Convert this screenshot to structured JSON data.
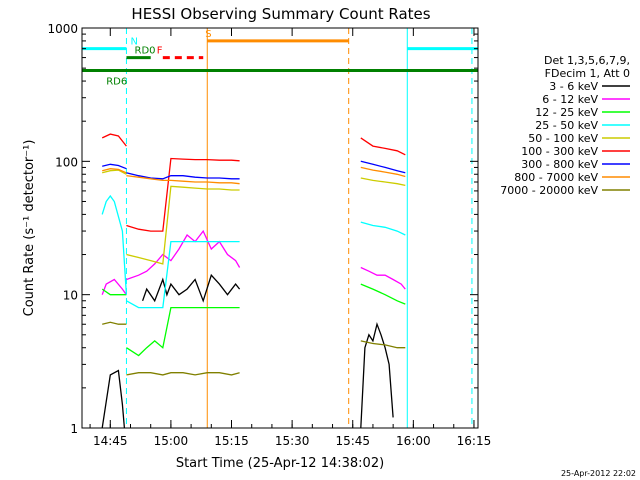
{
  "chart_data": {
    "type": "line",
    "title": "HESSI Observing Summary Count Rates",
    "xlabel": "Start Time (25-Apr-12 14:38:02)",
    "ylabel": "Count Rate (s⁻¹ detector⁻¹)",
    "yscale": "log",
    "ylim": [
      1,
      1000
    ],
    "xlim_minutes": [
      0,
      98
    ],
    "x_ticks": [
      {
        "label": "14:45",
        "min": 7
      },
      {
        "label": "15:00",
        "min": 22
      },
      {
        "label": "15:15",
        "min": 37
      },
      {
        "label": "15:30",
        "min": 52
      },
      {
        "label": "15:45",
        "min": 67
      },
      {
        "label": "16:00",
        "min": 82
      },
      {
        "label": "16:15",
        "min": 97
      }
    ],
    "y_tick_labels": [
      "1",
      "10",
      "100",
      "1000"
    ],
    "legend_header": [
      "Det 1,3,5,6,7,9,",
      "FDecim 1, Att 0"
    ],
    "legend_placement": "right",
    "series": [
      {
        "name": "3 - 6 keV",
        "color": "#000000",
        "segments": [
          [
            [
              5,
              1
            ],
            [
              7,
              2.5
            ],
            [
              9,
              2.7
            ],
            [
              10,
              1.5
            ],
            [
              10.5,
              1
            ]
          ],
          [
            [
              15,
              9
            ],
            [
              16,
              11
            ],
            [
              18,
              9
            ],
            [
              20,
              13
            ],
            [
              21,
              10
            ],
            [
              22,
              12
            ],
            [
              24,
              10
            ],
            [
              26,
              11
            ],
            [
              28,
              13
            ],
            [
              30,
              9
            ],
            [
              32,
              14
            ],
            [
              34,
              12
            ],
            [
              36,
              10
            ],
            [
              38,
              12
            ],
            [
              39,
              11
            ]
          ],
          [
            [
              69,
              1
            ],
            [
              70,
              4
            ],
            [
              71,
              5
            ],
            [
              72,
              4.5
            ],
            [
              73,
              6
            ],
            [
              74,
              5
            ],
            [
              75,
              4
            ],
            [
              76,
              3
            ],
            [
              77,
              1.2
            ]
          ]
        ]
      },
      {
        "name": "6 - 12 keV",
        "color": "#ff00ff",
        "segments": [
          [
            [
              5,
              10
            ],
            [
              6,
              12
            ],
            [
              8,
              13
            ],
            [
              10,
              11
            ],
            [
              11,
              10
            ]
          ],
          [
            [
              11,
              13
            ],
            [
              14,
              14
            ],
            [
              16,
              15
            ],
            [
              18,
              17
            ],
            [
              20,
              20
            ],
            [
              22,
              18
            ],
            [
              24,
              22
            ],
            [
              26,
              28
            ],
            [
              28,
              25
            ],
            [
              30,
              30
            ],
            [
              32,
              22
            ],
            [
              34,
              25
            ],
            [
              36,
              20
            ],
            [
              38,
              18
            ],
            [
              39,
              16
            ]
          ],
          [
            [
              69,
              16
            ],
            [
              71,
              15
            ],
            [
              73,
              14
            ],
            [
              75,
              14
            ],
            [
              77,
              13
            ],
            [
              79,
              12
            ],
            [
              80,
              11
            ]
          ]
        ]
      },
      {
        "name": "12 - 25 keV",
        "color": "#00ff00",
        "segments": [
          [
            [
              5,
              11
            ],
            [
              7,
              10
            ],
            [
              9,
              10
            ],
            [
              11,
              10
            ]
          ],
          [
            [
              11,
              4
            ],
            [
              14,
              3.5
            ],
            [
              16,
              4
            ],
            [
              18,
              4.5
            ],
            [
              20,
              4
            ],
            [
              22,
              8
            ],
            [
              25,
              8
            ],
            [
              28,
              8
            ],
            [
              31,
              8
            ],
            [
              34,
              8
            ],
            [
              37,
              8
            ],
            [
              39,
              8
            ]
          ],
          [
            [
              69,
              12
            ],
            [
              72,
              11
            ],
            [
              75,
              10
            ],
            [
              78,
              9
            ],
            [
              80,
              8.5
            ]
          ]
        ]
      },
      {
        "name": "25 - 50 keV",
        "color": "#00ffff",
        "segments": [
          [
            [
              5,
              40
            ],
            [
              6,
              50
            ],
            [
              7,
              55
            ],
            [
              8,
              50
            ],
            [
              10,
              30
            ],
            [
              11,
              10
            ]
          ],
          [
            [
              11,
              9
            ],
            [
              14,
              8
            ],
            [
              17,
              8
            ],
            [
              20,
              8
            ],
            [
              22,
              25
            ],
            [
              25,
              25
            ],
            [
              28,
              25
            ],
            [
              31,
              25
            ],
            [
              34,
              25
            ],
            [
              37,
              25
            ],
            [
              39,
              25
            ]
          ],
          [
            [
              69,
              35
            ],
            [
              72,
              33
            ],
            [
              75,
              32
            ],
            [
              78,
              30
            ],
            [
              80,
              28
            ]
          ]
        ]
      },
      {
        "name": "50 - 100 keV",
        "color": "#cccc00",
        "segments": [
          [
            [
              5,
              82
            ],
            [
              7,
              85
            ],
            [
              9,
              86
            ],
            [
              11,
              80
            ]
          ],
          [
            [
              11,
              20
            ],
            [
              14,
              19
            ],
            [
              17,
              18
            ],
            [
              20,
              17
            ],
            [
              22,
              65
            ],
            [
              25,
              64
            ],
            [
              28,
              63
            ],
            [
              31,
              62
            ],
            [
              34,
              62
            ],
            [
              37,
              61
            ],
            [
              39,
              61
            ]
          ],
          [
            [
              69,
              75
            ],
            [
              72,
              72
            ],
            [
              75,
              70
            ],
            [
              78,
              68
            ],
            [
              80,
              66
            ]
          ]
        ]
      },
      {
        "name": "100 - 300 keV",
        "color": "#ff0000",
        "segments": [
          [
            [
              5,
              150
            ],
            [
              7,
              160
            ],
            [
              9,
              155
            ],
            [
              11,
              130
            ]
          ],
          [
            [
              11,
              33
            ],
            [
              14,
              31
            ],
            [
              17,
              30
            ],
            [
              20,
              30
            ],
            [
              22,
              105
            ],
            [
              25,
              104
            ],
            [
              28,
              103
            ],
            [
              31,
              103
            ],
            [
              34,
              102
            ],
            [
              37,
              102
            ],
            [
              39,
              101
            ]
          ],
          [
            [
              69,
              150
            ],
            [
              72,
              130
            ],
            [
              75,
              125
            ],
            [
              78,
              120
            ],
            [
              80,
              112
            ]
          ]
        ]
      },
      {
        "name": "300 - 800 keV",
        "color": "#0000ff",
        "segments": [
          [
            [
              5,
              92
            ],
            [
              7,
              95
            ],
            [
              9,
              93
            ],
            [
              11,
              88
            ]
          ],
          [
            [
              11,
              82
            ],
            [
              14,
              78
            ],
            [
              17,
              75
            ],
            [
              20,
              74
            ],
            [
              22,
              78
            ],
            [
              25,
              78
            ],
            [
              28,
              76
            ],
            [
              31,
              75
            ],
            [
              34,
              75
            ],
            [
              37,
              74
            ],
            [
              39,
              74
            ]
          ],
          [
            [
              69,
              100
            ],
            [
              72,
              95
            ],
            [
              75,
              90
            ],
            [
              78,
              85
            ],
            [
              80,
              82
            ]
          ]
        ]
      },
      {
        "name": "800 - 7000 keV",
        "color": "#ff8c00",
        "segments": [
          [
            [
              5,
              85
            ],
            [
              7,
              88
            ],
            [
              9,
              87
            ],
            [
              11,
              82
            ]
          ],
          [
            [
              11,
              78
            ],
            [
              14,
              76
            ],
            [
              17,
              74
            ],
            [
              20,
              72
            ],
            [
              22,
              72
            ],
            [
              25,
              71
            ],
            [
              28,
              70
            ],
            [
              31,
              70
            ],
            [
              34,
              69
            ],
            [
              37,
              69
            ],
            [
              39,
              68
            ]
          ],
          [
            [
              69,
              90
            ],
            [
              72,
              86
            ],
            [
              75,
              83
            ],
            [
              78,
              80
            ],
            [
              80,
              77
            ]
          ]
        ]
      },
      {
        "name": "7000 - 20000 keV",
        "color": "#808000",
        "segments": [
          [
            [
              5,
              6
            ],
            [
              7,
              6.2
            ],
            [
              9,
              6
            ],
            [
              11,
              6
            ]
          ],
          [
            [
              11,
              2.5
            ],
            [
              14,
              2.6
            ],
            [
              17,
              2.6
            ],
            [
              20,
              2.5
            ],
            [
              22,
              2.6
            ],
            [
              25,
              2.6
            ],
            [
              28,
              2.5
            ],
            [
              31,
              2.6
            ],
            [
              34,
              2.6
            ],
            [
              37,
              2.5
            ],
            [
              39,
              2.6
            ]
          ],
          [
            [
              69,
              4.5
            ],
            [
              72,
              4.3
            ],
            [
              75,
              4.2
            ],
            [
              78,
              4
            ],
            [
              80,
              4
            ]
          ]
        ]
      }
    ],
    "flags": [
      {
        "label": "N",
        "color": "#00ffff",
        "y": 700,
        "segments": [
          [
            0,
            11
          ],
          [
            80.5,
            98
          ]
        ],
        "label_min": 12
      },
      {
        "label": "RD0",
        "color": "#008000",
        "y": 600,
        "segments": [
          [
            11,
            17
          ]
        ],
        "label_min": 13
      },
      {
        "label": "F",
        "color": "#ff0000",
        "y": 600,
        "dashed": true,
        "segments": [
          [
            20,
            30
          ]
        ],
        "label_min": 18.5
      },
      {
        "label": "S",
        "color": "#ff8c00",
        "y": 800,
        "segments": [
          [
            31,
            66
          ]
        ],
        "label_min": 30.5
      },
      {
        "label": "RD6",
        "color": "#008000",
        "y": 480,
        "segments": [
          [
            0,
            98
          ]
        ],
        "label_min": 6
      }
    ],
    "vlines": [
      {
        "min": 11,
        "color": "#00ffff",
        "dashed": true
      },
      {
        "min": 31,
        "color": "#ff8c00",
        "dashed": false
      },
      {
        "min": 66,
        "color": "#ff8c00",
        "dashed": true
      },
      {
        "min": 80.5,
        "color": "#00ffff",
        "dashed": false
      },
      {
        "min": 96.5,
        "color": "#00ffff",
        "dashed": true
      }
    ]
  },
  "timestamp": "25-Apr-2012 22:02"
}
